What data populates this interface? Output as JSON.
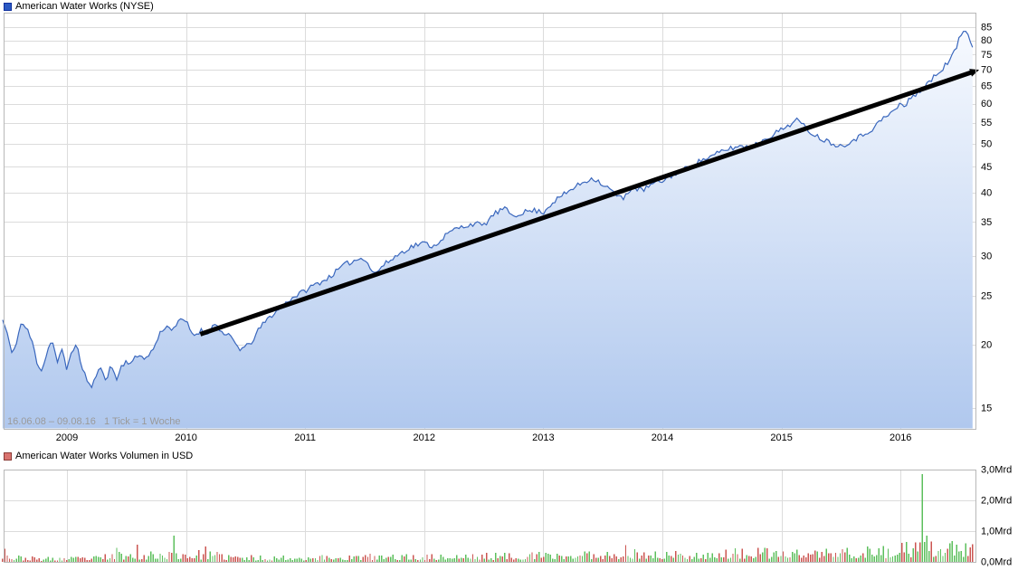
{
  "page": {
    "background": "#ffffff"
  },
  "chart_data": [
    {
      "type": "area",
      "title": "American Water Works (NYSE)",
      "legend_swatch": {
        "fill": "#2b59c3",
        "border": "#0d2f9e"
      },
      "range_label": "16.06.08 – 09.08.16",
      "tick_note": "1 Tick = 1 Woche",
      "y_scale": "log",
      "ylim": [
        15,
        85
      ],
      "y_ticks": [
        15,
        20,
        25,
        30,
        35,
        40,
        45,
        50,
        55,
        60,
        65,
        70,
        75,
        80,
        85
      ],
      "x_tick_labels": [
        "2009",
        "2010",
        "2011",
        "2012",
        "2013",
        "2014",
        "2015",
        "2016"
      ],
      "x_ticks": [
        2009,
        2010,
        2011,
        2012,
        2013,
        2014,
        2015,
        2016
      ],
      "grid": true,
      "legend_position": "top-left",
      "colors": {
        "line": "#3a67bd",
        "fill_top": "#fafcff",
        "fill_bottom": "#b0c8ee",
        "trend": "#000000",
        "grid": "#dcdcdc",
        "border": "#b8b8b8",
        "caption": "#9a9a9a"
      },
      "points": [
        [
          2008.46,
          22.4
        ],
        [
          2008.5,
          21.0
        ],
        [
          2008.54,
          19.0
        ],
        [
          2008.58,
          20.5
        ],
        [
          2008.62,
          22.2
        ],
        [
          2008.67,
          21.3
        ],
        [
          2008.71,
          20.2
        ],
        [
          2008.75,
          18.4
        ],
        [
          2008.79,
          17.8
        ],
        [
          2008.83,
          19.2
        ],
        [
          2008.87,
          20.6
        ],
        [
          2008.92,
          18.5
        ],
        [
          2008.96,
          19.5
        ],
        [
          2009.0,
          17.8
        ],
        [
          2009.04,
          19.6
        ],
        [
          2009.08,
          19.9
        ],
        [
          2009.12,
          18.3
        ],
        [
          2009.17,
          17.0
        ],
        [
          2009.21,
          16.4
        ],
        [
          2009.25,
          17.6
        ],
        [
          2009.29,
          17.9
        ],
        [
          2009.33,
          17.1
        ],
        [
          2009.37,
          18.2
        ],
        [
          2009.42,
          17.1
        ],
        [
          2009.46,
          18.2
        ],
        [
          2009.5,
          18.6
        ],
        [
          2009.54,
          18.4
        ],
        [
          2009.58,
          18.9
        ],
        [
          2009.62,
          19.1
        ],
        [
          2009.67,
          18.8
        ],
        [
          2009.71,
          19.4
        ],
        [
          2009.75,
          20.2
        ],
        [
          2009.79,
          21.3
        ],
        [
          2009.83,
          21.8
        ],
        [
          2009.87,
          21.5
        ],
        [
          2009.92,
          21.9
        ],
        [
          2009.96,
          22.4
        ],
        [
          2010.0,
          22.3
        ],
        [
          2010.04,
          21.2
        ],
        [
          2010.08,
          20.9
        ],
        [
          2010.12,
          21.4
        ],
        [
          2010.17,
          21.0
        ],
        [
          2010.21,
          21.6
        ],
        [
          2010.25,
          22.0
        ],
        [
          2010.29,
          21.4
        ],
        [
          2010.33,
          20.7
        ],
        [
          2010.37,
          20.9
        ],
        [
          2010.42,
          20.0
        ],
        [
          2010.46,
          19.6
        ],
        [
          2010.5,
          19.8
        ],
        [
          2010.54,
          20.1
        ],
        [
          2010.58,
          20.8
        ],
        [
          2010.62,
          21.6
        ],
        [
          2010.67,
          22.3
        ],
        [
          2010.71,
          22.8
        ],
        [
          2010.75,
          23.2
        ],
        [
          2010.79,
          23.6
        ],
        [
          2010.83,
          24.1
        ],
        [
          2010.87,
          24.6
        ],
        [
          2010.92,
          25.0
        ],
        [
          2010.96,
          25.3
        ],
        [
          2011.0,
          25.6
        ],
        [
          2011.08,
          26.3
        ],
        [
          2011.17,
          26.9
        ],
        [
          2011.25,
          27.8
        ],
        [
          2011.33,
          28.8
        ],
        [
          2011.42,
          29.4
        ],
        [
          2011.5,
          29.8
        ],
        [
          2011.54,
          28.6
        ],
        [
          2011.58,
          27.6
        ],
        [
          2011.62,
          28.2
        ],
        [
          2011.67,
          28.9
        ],
        [
          2011.75,
          29.8
        ],
        [
          2011.83,
          30.7
        ],
        [
          2011.92,
          31.5
        ],
        [
          2012.0,
          31.8
        ],
        [
          2012.08,
          31.3
        ],
        [
          2012.17,
          32.8
        ],
        [
          2012.25,
          33.8
        ],
        [
          2012.33,
          34.3
        ],
        [
          2012.42,
          34.8
        ],
        [
          2012.5,
          34.4
        ],
        [
          2012.54,
          35.3
        ],
        [
          2012.58,
          36.2
        ],
        [
          2012.67,
          37.2
        ],
        [
          2012.71,
          36.6
        ],
        [
          2012.75,
          36.0
        ],
        [
          2012.83,
          36.6
        ],
        [
          2012.92,
          36.9
        ],
        [
          2013.0,
          36.6
        ],
        [
          2013.08,
          38.3
        ],
        [
          2013.17,
          39.6
        ],
        [
          2013.25,
          40.8
        ],
        [
          2013.33,
          41.9
        ],
        [
          2013.42,
          42.8
        ],
        [
          2013.5,
          41.5
        ],
        [
          2013.58,
          40.3
        ],
        [
          2013.62,
          39.4
        ],
        [
          2013.67,
          38.8
        ],
        [
          2013.71,
          40.2
        ],
        [
          2013.75,
          41.0
        ],
        [
          2013.83,
          40.4
        ],
        [
          2013.92,
          41.6
        ],
        [
          2014.0,
          42.2
        ],
        [
          2014.08,
          43.3
        ],
        [
          2014.17,
          44.3
        ],
        [
          2014.25,
          45.3
        ],
        [
          2014.33,
          46.4
        ],
        [
          2014.42,
          47.2
        ],
        [
          2014.5,
          48.3
        ],
        [
          2014.58,
          49.0
        ],
        [
          2014.67,
          49.5
        ],
        [
          2014.75,
          49.2
        ],
        [
          2014.83,
          50.6
        ],
        [
          2014.92,
          52.0
        ],
        [
          2015.0,
          53.3
        ],
        [
          2015.08,
          54.8
        ],
        [
          2015.13,
          55.8
        ],
        [
          2015.17,
          54.6
        ],
        [
          2015.25,
          52.6
        ],
        [
          2015.33,
          51.2
        ],
        [
          2015.42,
          50.2
        ],
        [
          2015.5,
          49.4
        ],
        [
          2015.58,
          50.6
        ],
        [
          2015.67,
          51.8
        ],
        [
          2015.75,
          53.2
        ],
        [
          2015.83,
          55.4
        ],
        [
          2015.92,
          57.6
        ],
        [
          2015.96,
          58.3
        ],
        [
          2016.0,
          60.2
        ],
        [
          2016.04,
          59.0
        ],
        [
          2016.08,
          61.5
        ],
        [
          2016.17,
          63.8
        ],
        [
          2016.25,
          66.5
        ],
        [
          2016.33,
          69.5
        ],
        [
          2016.42,
          73.5
        ],
        [
          2016.46,
          76.5
        ],
        [
          2016.5,
          81.5
        ],
        [
          2016.54,
          84.0
        ],
        [
          2016.56,
          83.2
        ],
        [
          2016.58,
          81.0
        ],
        [
          2016.6,
          78.5
        ],
        [
          2016.62,
          78.2
        ]
      ],
      "trendline": {
        "x1": 2010.12,
        "v1": 21,
        "x2": 2016.66,
        "v2": 70
      },
      "render_hints": {
        "t_start": 2008.46,
        "t_end": 2016.62,
        "seed": 11,
        "noise_amp": 0.012
      }
    },
    {
      "type": "bar",
      "title": "American Water Works Volumen in USD",
      "legend_swatch": {
        "fill": "#d9736f",
        "border": "#8b3a35"
      },
      "unit": "Mrd",
      "ylim": [
        0,
        3
      ],
      "y_ticks": [
        {
          "value": 0,
          "label": "0,0Mrd"
        },
        {
          "value": 1,
          "label": "1,0Mrd"
        },
        {
          "value": 2,
          "label": "2,0Mrd"
        },
        {
          "value": 3,
          "label": "3,0Mrd"
        }
      ],
      "x_ticks": [
        2009,
        2010,
        2011,
        2012,
        2013,
        2014,
        2015,
        2016
      ],
      "grid": true,
      "colors": {
        "up": "#5cbf5c",
        "down": "#cb5551",
        "grid": "#dcdcdc",
        "border": "#b8b8b8"
      },
      "points": [
        [
          2008.46,
          0.28
        ],
        [
          2008.54,
          0.14
        ],
        [
          2008.75,
          0.1
        ],
        [
          2009.0,
          0.1
        ],
        [
          2009.25,
          0.12
        ],
        [
          2009.42,
          0.22
        ],
        [
          2009.58,
          0.2
        ],
        [
          2009.9,
          0.25
        ],
        [
          2010.17,
          0.22
        ],
        [
          2010.5,
          0.13
        ],
        [
          2011.0,
          0.14
        ],
        [
          2011.5,
          0.16
        ],
        [
          2012.0,
          0.16
        ],
        [
          2012.5,
          0.18
        ],
        [
          2013.0,
          0.2
        ],
        [
          2013.5,
          0.24
        ],
        [
          2013.7,
          0.26
        ],
        [
          2014.0,
          0.22
        ],
        [
          2014.5,
          0.26
        ],
        [
          2015.0,
          0.28
        ],
        [
          2015.5,
          0.3
        ],
        [
          2015.9,
          0.34
        ],
        [
          2016.1,
          0.4
        ],
        [
          2016.3,
          0.42
        ],
        [
          2016.62,
          0.4
        ]
      ],
      "spikes": [
        {
          "x": 2008.47,
          "v": 0.42,
          "c": "down"
        },
        {
          "x": 2009.42,
          "v": 0.45,
          "c": "up"
        },
        {
          "x": 2009.6,
          "v": 0.56,
          "c": "down"
        },
        {
          "x": 2009.9,
          "v": 0.85,
          "c": "up"
        },
        {
          "x": 2010.17,
          "v": 0.5,
          "c": "down"
        },
        {
          "x": 2013.7,
          "v": 0.55,
          "c": "down"
        },
        {
          "x": 2016.18,
          "v": 2.85,
          "c": "up"
        },
        {
          "x": 2016.22,
          "v": 0.85,
          "c": "up"
        }
      ],
      "render_hints": {
        "t_start": 2008.46,
        "t_end": 2016.62,
        "seed": 23,
        "vol_base": 0.35,
        "vol_span": 1.35
      }
    }
  ]
}
